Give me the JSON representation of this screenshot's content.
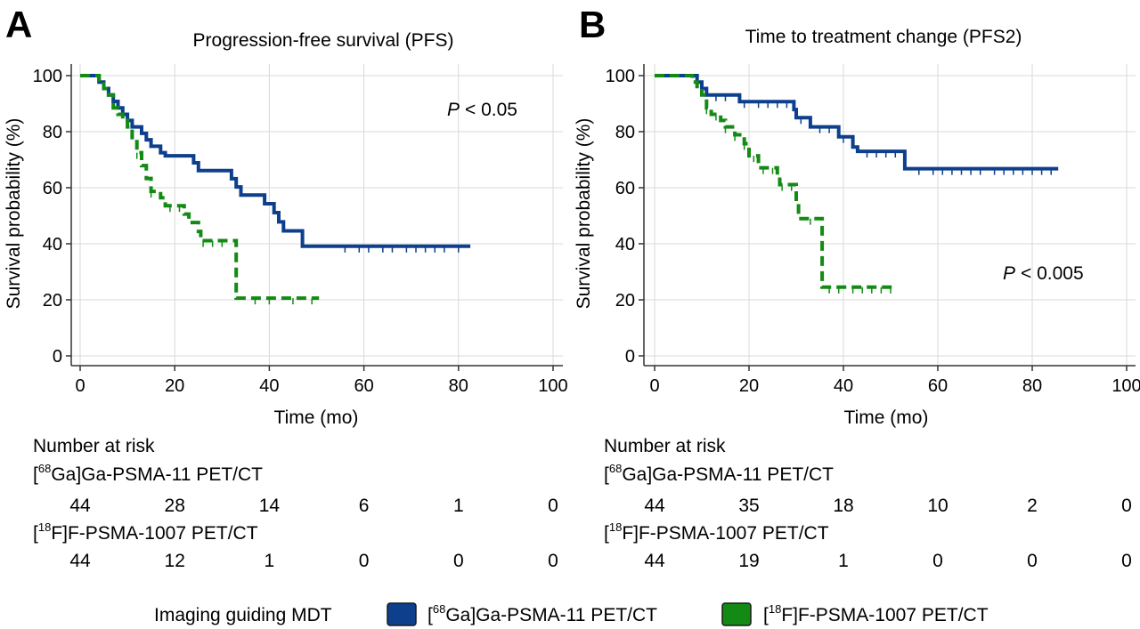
{
  "chart_data": [
    {
      "type": "line",
      "panel": "A",
      "title": "Progression-free survival (PFS)",
      "xlabel": "Time (mo)",
      "ylabel": "Survival probability (%)",
      "xlim": [
        0,
        100
      ],
      "ylim": [
        0,
        100
      ],
      "x_ticks": [
        "0",
        "20",
        "40",
        "60",
        "80",
        "100"
      ],
      "y_ticks": [
        "0",
        "20",
        "40",
        "60",
        "80",
        "100"
      ],
      "grid": true,
      "annotation": "< 0.05",
      "annotation_p": "P",
      "series": [
        {
          "name": "[68Ga]Ga-PSMA-11 PET/CT",
          "color": "#0d3f8c",
          "style": "solid",
          "steps": [
            [
              0,
              100
            ],
            [
              3,
              100
            ],
            [
              4,
              97.7
            ],
            [
              5,
              95.4
            ],
            [
              6,
              93.1
            ],
            [
              7,
              90.8
            ],
            [
              8,
              88.5
            ],
            [
              9,
              86.2
            ],
            [
              10,
              84
            ],
            [
              11,
              81.7
            ],
            [
              13,
              79.4
            ],
            [
              14,
              77.1
            ],
            [
              15,
              74.8
            ],
            [
              17,
              72.5
            ],
            [
              18,
              71.4
            ],
            [
              24,
              68.9
            ],
            [
              25,
              66.1
            ],
            [
              32,
              63.2
            ],
            [
              33,
              60.3
            ],
            [
              34,
              57.4
            ],
            [
              39,
              54.3
            ],
            [
              41,
              51.1
            ],
            [
              42,
              47.8
            ],
            [
              43,
              44.6
            ],
            [
              47,
              39.1
            ],
            [
              82.5,
              39.1
            ]
          ],
          "censor_x": [
            56,
            59,
            61,
            64,
            66,
            69,
            71,
            73,
            75,
            77,
            80
          ]
        },
        {
          "name": "[18F]F-PSMA-1007 PET/CT",
          "color": "#138a13",
          "style": "dashed",
          "steps": [
            [
              0,
              100
            ],
            [
              3,
              100
            ],
            [
              4,
              97.7
            ],
            [
              5,
              95.4
            ],
            [
              6,
              93.1
            ],
            [
              7,
              88.5
            ],
            [
              8,
              86.2
            ],
            [
              9,
              84
            ],
            [
              10,
              81.7
            ],
            [
              11,
              77.1
            ],
            [
              12,
              72.5
            ],
            [
              13,
              67.9
            ],
            [
              14,
              63.3
            ],
            [
              15,
              58.7
            ],
            [
              17,
              56.4
            ],
            [
              18,
              53.6
            ],
            [
              22,
              50.6
            ],
            [
              23,
              47.6
            ],
            [
              25,
              44.4
            ],
            [
              25.5,
              41.1
            ],
            [
              33,
              41.1
            ],
            [
              33,
              20.6
            ],
            [
              50.5,
              20.6
            ]
          ],
          "censor_x": [
            12,
            15,
            19,
            21,
            26,
            28,
            30,
            37,
            40,
            45,
            49
          ]
        }
      ],
      "risk_table": {
        "header": "Number at risk",
        "time_points": [
          0,
          20,
          40,
          60,
          80,
          100
        ],
        "groups": [
          {
            "label_pre": "[",
            "sup": "68",
            "label_post": "Ga]Ga-PSMA-11 PET/CT",
            "counts": [
              "44",
              "28",
              "14",
              "6",
              "1",
              "0"
            ]
          },
          {
            "label_pre": "[",
            "sup": "18",
            "label_post": "F]F-PSMA-1007 PET/CT",
            "counts": [
              "44",
              "12",
              "1",
              "0",
              "0",
              "0"
            ]
          }
        ]
      }
    },
    {
      "type": "line",
      "panel": "B",
      "title": "Time to treatment change (PFS2)",
      "xlabel": "Time (mo)",
      "ylabel": "Survival probability (%)",
      "xlim": [
        0,
        100
      ],
      "ylim": [
        0,
        100
      ],
      "x_ticks": [
        "0",
        "20",
        "40",
        "60",
        "80",
        "100"
      ],
      "y_ticks": [
        "0",
        "20",
        "40",
        "60",
        "80",
        "100"
      ],
      "grid": true,
      "annotation": "< 0.005",
      "annotation_p": "P",
      "series": [
        {
          "name": "[68Ga]Ga-PSMA-11 PET/CT",
          "color": "#0d3f8c",
          "style": "solid",
          "steps": [
            [
              0,
              100
            ],
            [
              8,
              100
            ],
            [
              9,
              97.7
            ],
            [
              10,
              95.4
            ],
            [
              11,
              93.1
            ],
            [
              18,
              90.7
            ],
            [
              29.5,
              87.9
            ],
            [
              30,
              85
            ],
            [
              33,
              81.7
            ],
            [
              39,
              78.2
            ],
            [
              42,
              74.5
            ],
            [
              43,
              73
            ],
            [
              52.5,
              73
            ],
            [
              53,
              66.8
            ],
            [
              85.5,
              66.8
            ]
          ],
          "censor_x": [
            13,
            15,
            19,
            22,
            24,
            26,
            28,
            31,
            35,
            37,
            40,
            45,
            47,
            49,
            51,
            56,
            59,
            61,
            63,
            65,
            67,
            69,
            72,
            74,
            76,
            78,
            80,
            82,
            84
          ]
        },
        {
          "name": "[18F]F-PSMA-1007 PET/CT",
          "color": "#138a13",
          "style": "dashed",
          "steps": [
            [
              0,
              100
            ],
            [
              7,
              100
            ],
            [
              8,
              97.7
            ],
            [
              9,
              95.4
            ],
            [
              10,
              93.1
            ],
            [
              11,
              88.5
            ],
            [
              12,
              86.2
            ],
            [
              14,
              84
            ],
            [
              15,
              81.7
            ],
            [
              17,
              78.9
            ],
            [
              19,
              75.7
            ],
            [
              20,
              71.4
            ],
            [
              22,
              67.1
            ],
            [
              26,
              64.3
            ],
            [
              26.5,
              61.1
            ],
            [
              30,
              55
            ],
            [
              30.5,
              49
            ],
            [
              35,
              49
            ],
            [
              35.5,
              24.5
            ],
            [
              51,
              24.5
            ]
          ],
          "censor_x": [
            11,
            13,
            15,
            17,
            19,
            21,
            23,
            25,
            27,
            29,
            33,
            37,
            39,
            42,
            44,
            46,
            48,
            50
          ]
        }
      ],
      "risk_table": {
        "header": "Number at risk",
        "time_points": [
          0,
          20,
          40,
          60,
          80,
          100
        ],
        "groups": [
          {
            "label_pre": "[",
            "sup": "68",
            "label_post": "Ga]Ga-PSMA-11 PET/CT",
            "counts": [
              "44",
              "35",
              "18",
              "10",
              "2",
              "0"
            ]
          },
          {
            "label_pre": "[",
            "sup": "18",
            "label_post": "F]F-PSMA-1007 PET/CT",
            "counts": [
              "44",
              "19",
              "1",
              "0",
              "0",
              "0"
            ]
          }
        ]
      }
    }
  ],
  "legend": {
    "title": "Imaging guiding MDT",
    "items": [
      {
        "label_pre": "[",
        "sup": "68",
        "label_post": "Ga]Ga-PSMA-11 PET/CT",
        "color": "#0d3f8c"
      },
      {
        "label_pre": "[",
        "sup": "18",
        "label_post": "F]F-PSMA-1007 PET/CT",
        "color": "#138a13"
      }
    ]
  }
}
